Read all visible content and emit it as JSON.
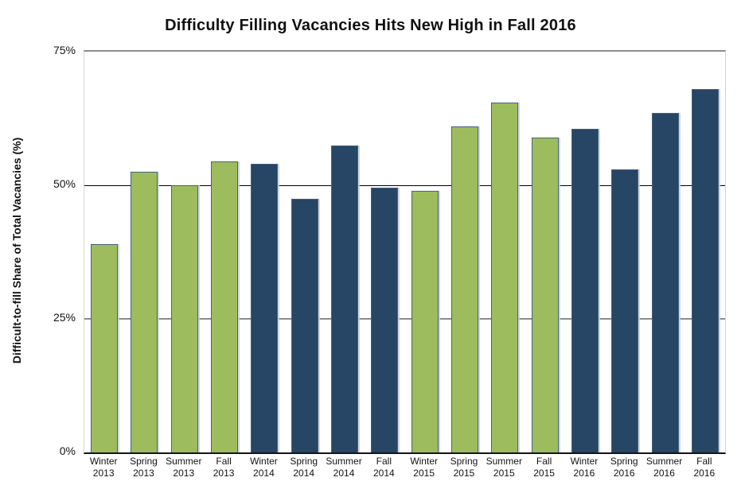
{
  "chart_data": {
    "type": "bar",
    "title": "Difficulty Filling Vacancies Hits New High in Fall 2016",
    "xlabel": "",
    "ylabel": "Difficult-to-fill Share of Total Vacancies (%)",
    "ylim": [
      0,
      75
    ],
    "yticks": [
      0,
      25,
      50,
      75
    ],
    "ytick_suffix": "%",
    "grid": "horizontal",
    "legend": "none",
    "categories": [
      "Winter 2013",
      "Spring 2013",
      "Summer 2013",
      "Fall 2013",
      "Winter 2014",
      "Spring 2014",
      "Summer 2014",
      "Fall 2014",
      "Winter 2015",
      "Spring 2015",
      "Summer 2015",
      "Fall 2015",
      "Winter 2016",
      "Spring 2016",
      "Summer 2016",
      "Fall 2016"
    ],
    "points": [
      {
        "season": "Winter",
        "year": "2013",
        "value": 39,
        "color_group": "green"
      },
      {
        "season": "Spring",
        "year": "2013",
        "value": 52.5,
        "color_group": "green"
      },
      {
        "season": "Summer",
        "year": "2013",
        "value": 50,
        "color_group": "green"
      },
      {
        "season": "Fall",
        "year": "2013",
        "value": 54.5,
        "color_group": "green"
      },
      {
        "season": "Winter",
        "year": "2014",
        "value": 54,
        "color_group": "navy"
      },
      {
        "season": "Spring",
        "year": "2014",
        "value": 47.5,
        "color_group": "navy"
      },
      {
        "season": "Summer",
        "year": "2014",
        "value": 57.5,
        "color_group": "navy"
      },
      {
        "season": "Fall",
        "year": "2014",
        "value": 49.5,
        "color_group": "navy"
      },
      {
        "season": "Winter",
        "year": "2015",
        "value": 49,
        "color_group": "green"
      },
      {
        "season": "Spring",
        "year": "2015",
        "value": 61,
        "color_group": "green"
      },
      {
        "season": "Summer",
        "year": "2015",
        "value": 65.5,
        "color_group": "green"
      },
      {
        "season": "Fall",
        "year": "2015",
        "value": 59,
        "color_group": "green"
      },
      {
        "season": "Winter",
        "year": "2016",
        "value": 60.5,
        "color_group": "navy"
      },
      {
        "season": "Spring",
        "year": "2016",
        "value": 53,
        "color_group": "navy"
      },
      {
        "season": "Summer",
        "year": "2016",
        "value": 63.5,
        "color_group": "navy"
      },
      {
        "season": "Fall",
        "year": "2016",
        "value": 68,
        "color_group": "navy"
      }
    ],
    "colors": {
      "green": "#9CBC5D",
      "navy": "#274565",
      "bar_border": "#47637E",
      "gridline_gray": "#8C8C8C",
      "gridline_dark": "#000000",
      "axis_line": "#141414",
      "text": "#111111"
    }
  }
}
